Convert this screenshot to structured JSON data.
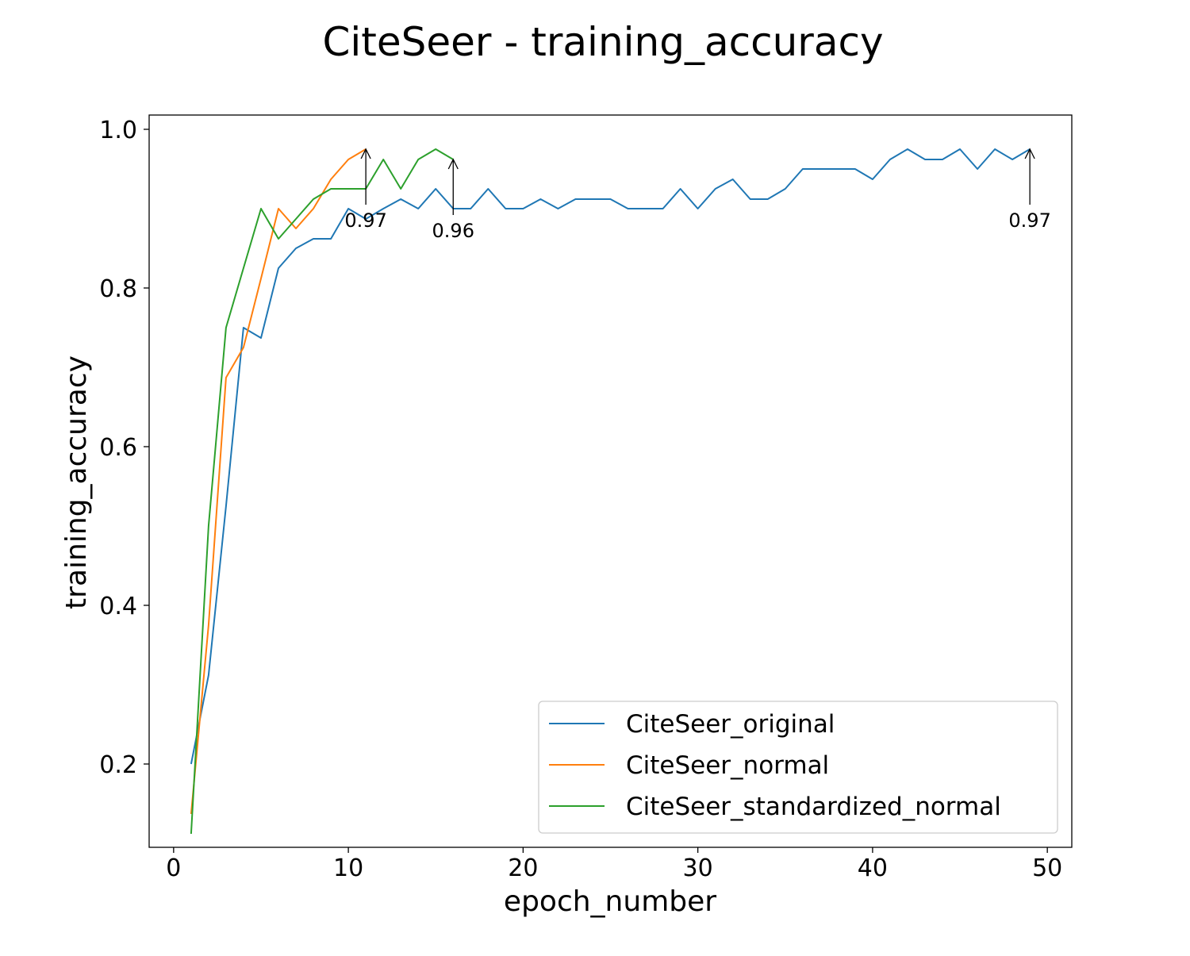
{
  "chart_data": {
    "type": "line",
    "title": "CiteSeer - training_accuracy",
    "xlabel": "epoch_number",
    "ylabel": "training_accuracy",
    "xlim": [
      -1.4,
      51.4
    ],
    "ylim": [
      0.095,
      1.018
    ],
    "xticks": [
      0,
      10,
      20,
      30,
      40,
      50
    ],
    "yticks": [
      0.2,
      0.4,
      0.6,
      0.8,
      1.0
    ],
    "xtick_labels": [
      "0",
      "10",
      "20",
      "30",
      "40",
      "50"
    ],
    "ytick_labels": [
      "0.2",
      "0.4",
      "0.6",
      "0.8",
      "1.0"
    ],
    "grid": false,
    "legend_position": "lower right",
    "series": [
      {
        "name": "CiteSeer_original",
        "color": "#1f77b4",
        "x": [
          1,
          2,
          3,
          4,
          5,
          6,
          7,
          8,
          9,
          10,
          11,
          12,
          13,
          14,
          15,
          16,
          17,
          18,
          19,
          20,
          21,
          22,
          23,
          24,
          25,
          26,
          27,
          28,
          29,
          30,
          31,
          32,
          33,
          34,
          35,
          36,
          37,
          38,
          39,
          40,
          41,
          42,
          43,
          44,
          45,
          46,
          47,
          48,
          49
        ],
        "y": [
          0.2,
          0.312,
          0.525,
          0.75,
          0.737,
          0.825,
          0.85,
          0.862,
          0.862,
          0.9,
          0.887,
          0.9,
          0.912,
          0.9,
          0.925,
          0.9,
          0.9,
          0.925,
          0.9,
          0.9,
          0.912,
          0.9,
          0.912,
          0.912,
          0.912,
          0.9,
          0.9,
          0.9,
          0.925,
          0.9,
          0.925,
          0.937,
          0.912,
          0.912,
          0.925,
          0.95,
          0.95,
          0.95,
          0.95,
          0.937,
          0.962,
          0.975,
          0.962,
          0.962,
          0.975,
          0.95,
          0.975,
          0.962,
          0.975
        ]
      },
      {
        "name": "CiteSeer_normal",
        "color": "#ff7f0e",
        "x": [
          1,
          2,
          3,
          4,
          5,
          6,
          7,
          8,
          9,
          10,
          11
        ],
        "y": [
          0.137,
          0.375,
          0.687,
          0.725,
          0.812,
          0.9,
          0.875,
          0.9,
          0.937,
          0.962,
          0.975
        ]
      },
      {
        "name": "CiteSeer_standardized_normal",
        "color": "#2ca02c",
        "x": [
          1,
          2,
          3,
          4,
          5,
          6,
          7,
          8,
          9,
          10,
          11,
          12,
          13,
          14,
          15,
          16
        ],
        "y": [
          0.112,
          0.5,
          0.75,
          0.825,
          0.9,
          0.862,
          0.887,
          0.912,
          0.925,
          0.925,
          0.925,
          0.962,
          0.925,
          0.962,
          0.975,
          0.962
        ]
      }
    ],
    "annotations": [
      {
        "x": 11,
        "y": 0.975,
        "text": "0.97"
      },
      {
        "x": 16,
        "y": 0.962,
        "text": "0.96"
      },
      {
        "x": 49,
        "y": 0.975,
        "text": "0.97"
      }
    ]
  }
}
